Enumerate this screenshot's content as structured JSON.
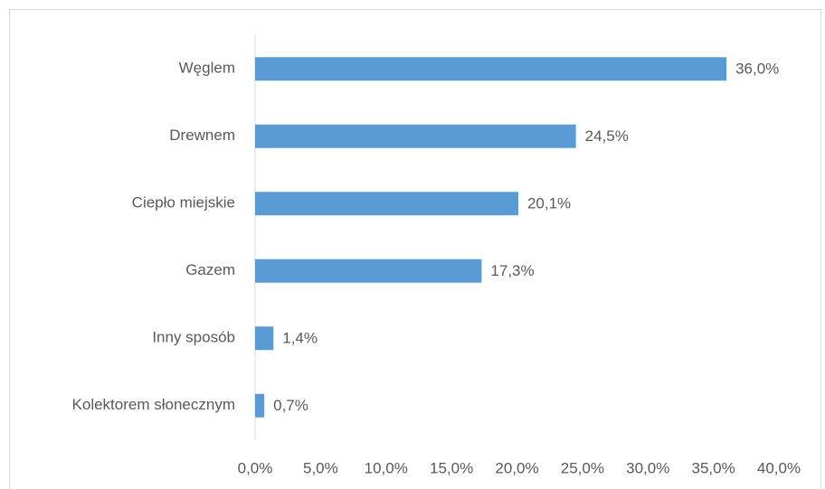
{
  "chart_data": {
    "type": "barh",
    "categories": [
      "Węglem",
      "Drewnem",
      "Ciepło miejskie",
      "Gazem",
      "Inny sposób",
      "Kolektorem słonecznym"
    ],
    "values": [
      36.0,
      24.5,
      20.1,
      17.3,
      1.4,
      0.7
    ],
    "value_labels": [
      "36,0%",
      "24,5%",
      "20,1%",
      "17,3%",
      "1,4%",
      "0,7%"
    ],
    "color": "#5b9bd5",
    "xlim": [
      0,
      40
    ],
    "xticks": [
      {
        "value": 0,
        "label": "0,0%"
      },
      {
        "value": 5,
        "label": "5,0%"
      },
      {
        "value": 10,
        "label": "10,0%"
      },
      {
        "value": 15,
        "label": "15,0%"
      },
      {
        "value": 20,
        "label": "20,0%"
      },
      {
        "value": 25,
        "label": "25,0%"
      },
      {
        "value": 30,
        "label": "30,0%"
      },
      {
        "value": 35,
        "label": "35,0%"
      },
      {
        "value": 40,
        "label": "40,0%"
      }
    ],
    "grid": false
  }
}
